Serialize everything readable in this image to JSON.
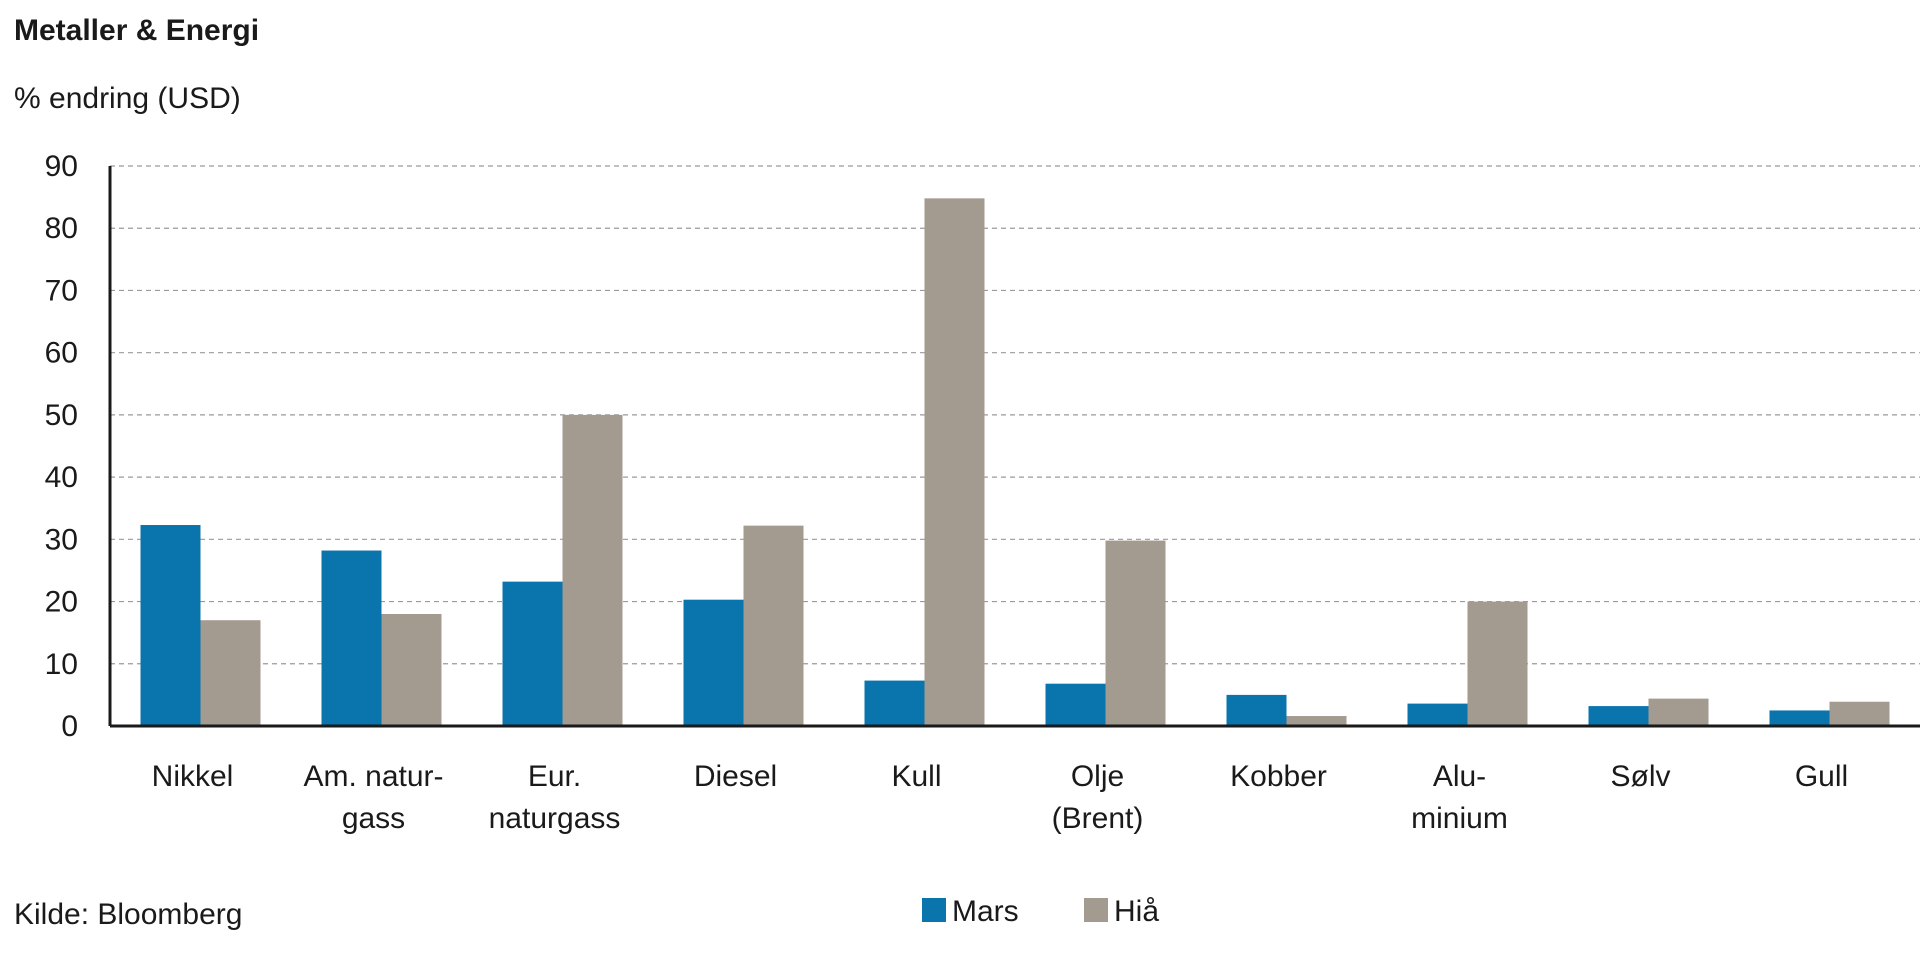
{
  "chart_data": {
    "type": "bar",
    "title": "Metaller & Energi",
    "subtitle": "% endring (USD)",
    "source": "Kilde: Bloomberg",
    "categories": [
      [
        "Nikkel"
      ],
      [
        "Am. natur-",
        "gass"
      ],
      [
        "Eur.",
        "naturgass"
      ],
      [
        "Diesel"
      ],
      [
        "Kull"
      ],
      [
        "Olje",
        "(Brent)"
      ],
      [
        "Kobber"
      ],
      [
        "Alu-",
        "minium"
      ],
      [
        "Sølv"
      ],
      [
        "Gull"
      ]
    ],
    "series": [
      {
        "name": "Mars",
        "color": "#0a74ad",
        "values": [
          32.3,
          28.2,
          23.2,
          20.3,
          7.3,
          6.8,
          5.0,
          3.6,
          3.2,
          2.5
        ]
      },
      {
        "name": "Hiå",
        "color": "#a39a90",
        "values": [
          17.0,
          18.0,
          50.0,
          32.2,
          84.8,
          29.8,
          1.6,
          20.0,
          4.4,
          3.9
        ]
      }
    ],
    "ylim": [
      0,
      90
    ],
    "yticks": [
      0,
      10,
      20,
      30,
      40,
      50,
      60,
      70,
      80,
      90
    ],
    "grid": true,
    "legend_position": "bottom-center"
  }
}
